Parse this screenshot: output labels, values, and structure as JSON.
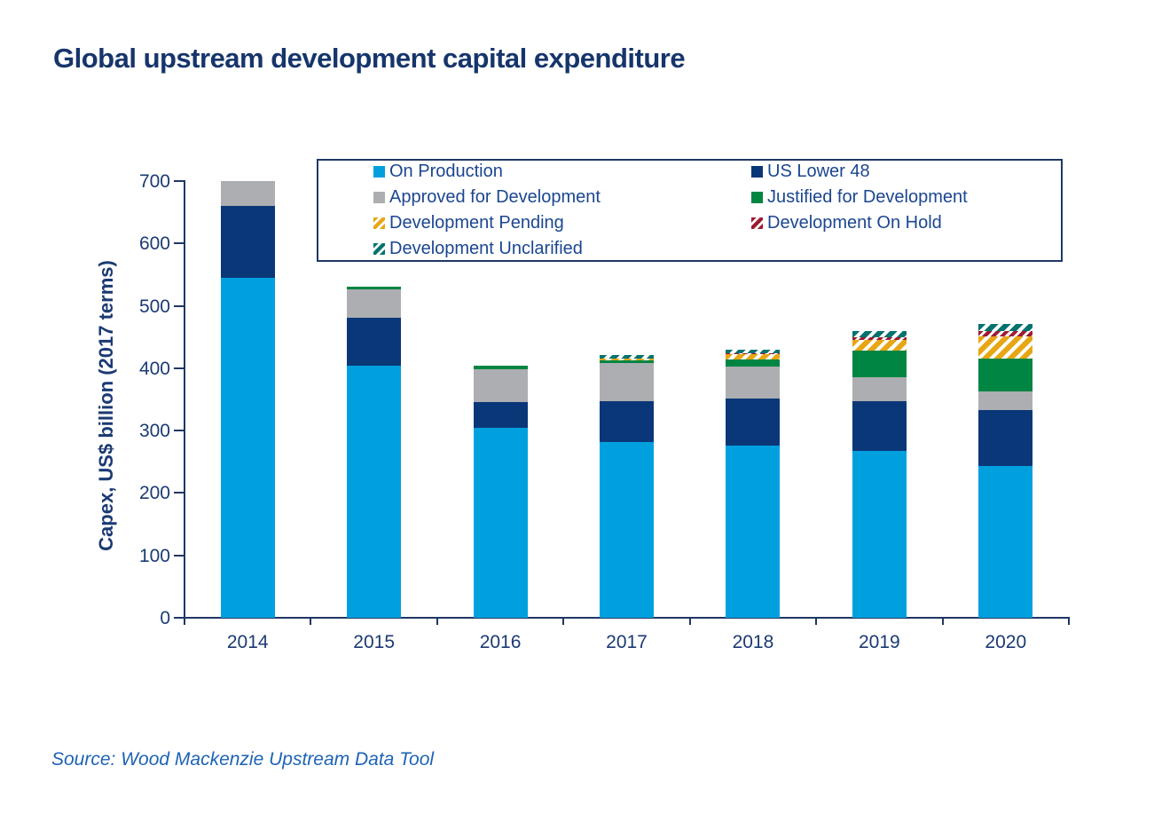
{
  "title": "Global upstream development capital expenditure",
  "source": "Source: Wood Mackenzie Upstream Data Tool",
  "colors": {
    "title_text": "#16356B",
    "axis_text": "#1B3A73",
    "axis_line": "#1F3864",
    "legend_text": "#1B4690",
    "source_text": "#1E63B4",
    "background": "#FFFFFF"
  },
  "y_axis": {
    "label": "Capex, US$ billion (2017 terms)",
    "ticks": [
      0,
      100,
      200,
      300,
      400,
      500,
      600,
      700
    ],
    "max": 700
  },
  "x_axis": {
    "categories": [
      "2014",
      "2015",
      "2016",
      "2017",
      "2018",
      "2019",
      "2020"
    ]
  },
  "legend_items": [
    "On Production",
    "US Lower 48",
    "Approved for Development",
    "Justified for Development",
    "Development Pending",
    "Development On Hold",
    "Development Unclarified"
  ],
  "chart_data": {
    "type": "bar",
    "stacked": true,
    "title": "Global upstream development capital expenditure",
    "xlabel": "",
    "ylabel": "Capex, US$ billion (2017 terms)",
    "ylim": [
      0,
      700
    ],
    "grid": false,
    "legend_position": "top-inside-border-box",
    "categories": [
      "2014",
      "2015",
      "2016",
      "2017",
      "2018",
      "2019",
      "2020"
    ],
    "series": [
      {
        "name": "On Production",
        "color": "#00A0DF",
        "pattern": "solid",
        "values": [
          545,
          404,
          304,
          282,
          276,
          267,
          243
        ]
      },
      {
        "name": "US Lower 48",
        "color": "#0A3778",
        "pattern": "solid",
        "values": [
          115,
          77,
          42,
          65,
          75,
          80,
          90
        ]
      },
      {
        "name": "Approved for Development",
        "color": "#ACAEB1",
        "pattern": "solid",
        "values": [
          40,
          45,
          53,
          62,
          51,
          38,
          30
        ]
      },
      {
        "name": "Justified for Development",
        "color": "#008542",
        "pattern": "solid",
        "values": [
          0,
          4,
          5,
          4,
          12,
          43,
          52
        ]
      },
      {
        "name": "Development Pending",
        "color": "#E7A614",
        "pattern": "hatch",
        "values": [
          0,
          0,
          0,
          3,
          8,
          17,
          36
        ]
      },
      {
        "name": "Development On Hold",
        "color": "#9E1B32",
        "pattern": "hatch",
        "values": [
          0,
          0,
          0,
          0,
          2,
          5,
          8
        ]
      },
      {
        "name": "Development Unclarified",
        "color": "#00736E",
        "pattern": "hatch",
        "values": [
          0,
          0,
          0,
          5,
          5,
          10,
          12
        ]
      }
    ],
    "totals": [
      700,
      530,
      404,
      421,
      429,
      460,
      471
    ]
  }
}
